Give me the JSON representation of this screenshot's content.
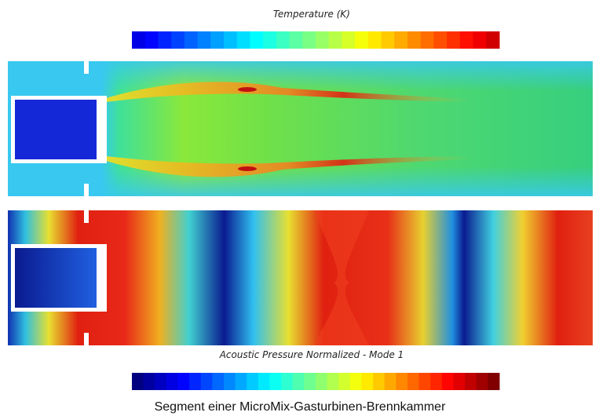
{
  "temperature_title": "Temperature (K)",
  "acoustic_title": "Acoustic Pressure Normalized - Mode 1",
  "caption": "Segment einer MicroMix-Gasturbinen-Brennkammer"
}
